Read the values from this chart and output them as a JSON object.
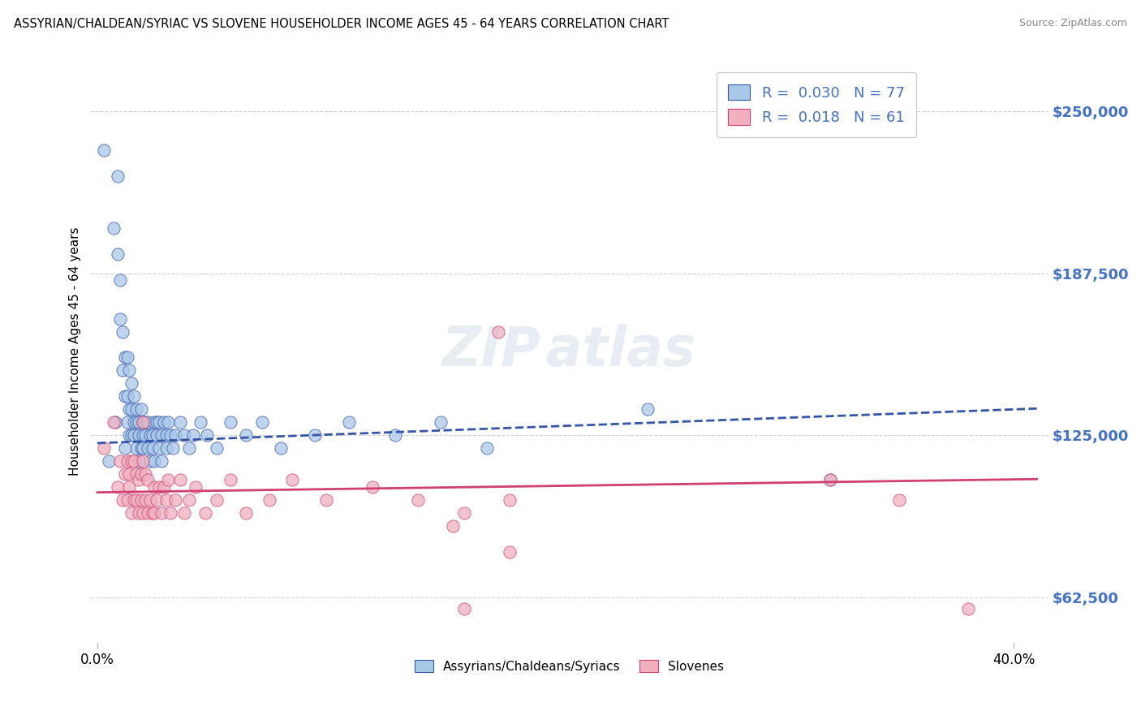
{
  "title": "ASSYRIAN/CHALDEAN/SYRIAC VS SLOVENE HOUSEHOLDER INCOME AGES 45 - 64 YEARS CORRELATION CHART",
  "source": "Source: ZipAtlas.com",
  "ylabel": "Householder Income Ages 45 - 64 years",
  "xlim": [
    -0.003,
    0.415
  ],
  "ylim": [
    45000,
    270000
  ],
  "yticks": [
    62500,
    125000,
    187500,
    250000
  ],
  "ytick_labels": [
    "$62,500",
    "$125,000",
    "$187,500",
    "$250,000"
  ],
  "xticks": [
    0.0,
    0.4
  ],
  "xtick_labels": [
    "0.0%",
    "40.0%"
  ],
  "background_color": "#ffffff",
  "grid_color": "#d0d0d0",
  "color_blue": "#a8c8e8",
  "color_pink": "#f0b0c0",
  "line_blue": "#3355aa",
  "line_pink": "#d04070",
  "label1": "Assyrians/Chaldeans/Syriacs",
  "label2": "Slovenes",
  "legend_r1": "0.030",
  "legend_n1": "77",
  "legend_r2": "0.018",
  "legend_n2": "61",
  "blue_x": [
    0.003,
    0.007,
    0.009,
    0.009,
    0.01,
    0.01,
    0.011,
    0.011,
    0.012,
    0.012,
    0.013,
    0.013,
    0.013,
    0.014,
    0.014,
    0.014,
    0.015,
    0.015,
    0.015,
    0.016,
    0.016,
    0.016,
    0.017,
    0.017,
    0.017,
    0.018,
    0.018,
    0.018,
    0.019,
    0.019,
    0.02,
    0.02,
    0.02,
    0.021,
    0.021,
    0.022,
    0.022,
    0.023,
    0.023,
    0.024,
    0.024,
    0.025,
    0.025,
    0.026,
    0.026,
    0.027,
    0.027,
    0.028,
    0.028,
    0.029,
    0.03,
    0.03,
    0.031,
    0.032,
    0.033,
    0.034,
    0.036,
    0.038,
    0.04,
    0.042,
    0.045,
    0.048,
    0.052,
    0.058,
    0.065,
    0.072,
    0.08,
    0.095,
    0.11,
    0.13,
    0.15,
    0.17,
    0.005,
    0.008,
    0.012,
    0.24,
    0.32
  ],
  "blue_y": [
    235000,
    205000,
    225000,
    195000,
    185000,
    170000,
    165000,
    150000,
    155000,
    140000,
    140000,
    155000,
    130000,
    150000,
    135000,
    125000,
    135000,
    145000,
    125000,
    140000,
    130000,
    125000,
    135000,
    120000,
    130000,
    125000,
    115000,
    130000,
    120000,
    135000,
    125000,
    130000,
    120000,
    130000,
    125000,
    120000,
    130000,
    125000,
    115000,
    125000,
    120000,
    130000,
    115000,
    125000,
    130000,
    120000,
    130000,
    125000,
    115000,
    130000,
    125000,
    120000,
    130000,
    125000,
    120000,
    125000,
    130000,
    125000,
    120000,
    125000,
    130000,
    125000,
    120000,
    130000,
    125000,
    130000,
    120000,
    125000,
    130000,
    125000,
    130000,
    120000,
    115000,
    130000,
    120000,
    135000,
    108000
  ],
  "pink_x": [
    0.003,
    0.007,
    0.009,
    0.01,
    0.011,
    0.012,
    0.013,
    0.013,
    0.014,
    0.014,
    0.015,
    0.015,
    0.016,
    0.016,
    0.017,
    0.017,
    0.018,
    0.018,
    0.019,
    0.019,
    0.02,
    0.02,
    0.021,
    0.021,
    0.022,
    0.022,
    0.023,
    0.024,
    0.025,
    0.025,
    0.026,
    0.027,
    0.028,
    0.029,
    0.03,
    0.031,
    0.032,
    0.034,
    0.036,
    0.038,
    0.04,
    0.043,
    0.047,
    0.052,
    0.058,
    0.065,
    0.075,
    0.085,
    0.1,
    0.12,
    0.14,
    0.16,
    0.18,
    0.175,
    0.02,
    0.155,
    0.18,
    0.32,
    0.35,
    0.38,
    0.16
  ],
  "pink_y": [
    120000,
    130000,
    105000,
    115000,
    100000,
    110000,
    100000,
    115000,
    105000,
    110000,
    95000,
    115000,
    100000,
    115000,
    100000,
    110000,
    95000,
    108000,
    100000,
    110000,
    95000,
    115000,
    100000,
    110000,
    95000,
    108000,
    100000,
    95000,
    105000,
    95000,
    100000,
    105000,
    95000,
    105000,
    100000,
    108000,
    95000,
    100000,
    108000,
    95000,
    100000,
    105000,
    95000,
    100000,
    108000,
    95000,
    100000,
    108000,
    100000,
    105000,
    100000,
    95000,
    100000,
    165000,
    130000,
    90000,
    80000,
    108000,
    100000,
    58000,
    58000
  ]
}
